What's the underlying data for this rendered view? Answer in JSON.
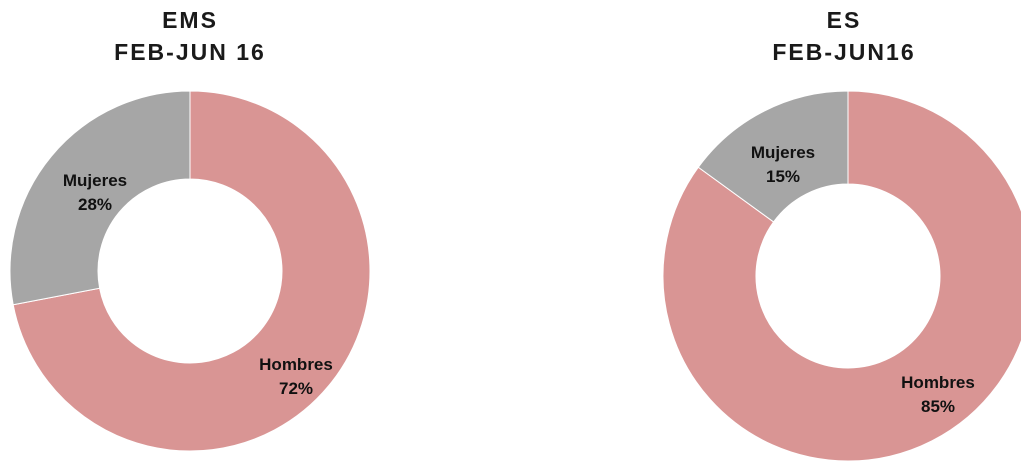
{
  "chart_data": [
    {
      "type": "pie",
      "title": [
        "EMS",
        "FEB-JUN 16"
      ],
      "donut": true,
      "slices": [
        {
          "label": "Hombres",
          "percent_label": "72%",
          "value": 72,
          "color": "#d99594"
        },
        {
          "label": "Mujeres",
          "percent_label": "28%",
          "value": 28,
          "color": "#a6a6a6"
        }
      ]
    },
    {
      "type": "pie",
      "title": [
        "ES",
        "FEB-JUN16"
      ],
      "donut": true,
      "slices": [
        {
          "label": "Hombres",
          "percent_label": "85%",
          "value": 85,
          "color": "#d99594"
        },
        {
          "label": "Mujeres",
          "percent_label": "15%",
          "value": 15,
          "color": "#a6a6a6"
        }
      ]
    }
  ]
}
